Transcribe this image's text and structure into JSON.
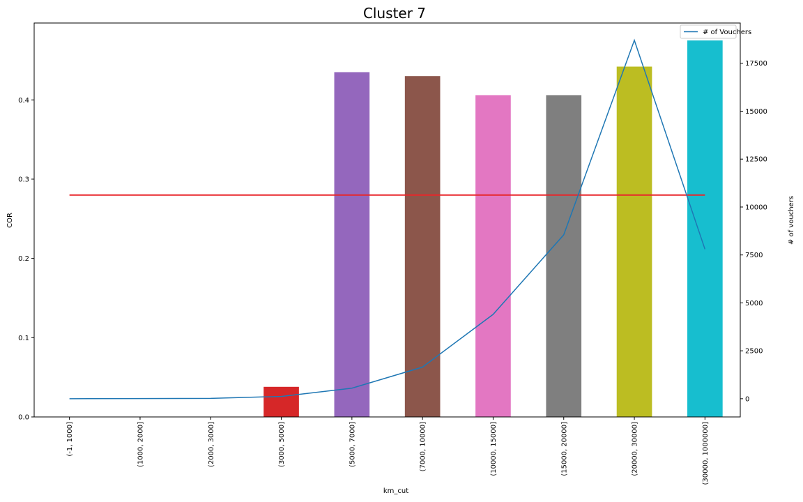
{
  "chart_data": {
    "type": "bar",
    "title": "Cluster 7",
    "xlabel": "km_cut",
    "ylabel": "COR",
    "ylabel_right": "# of vouchers",
    "categories": [
      "(-1, 1000]",
      "(1000, 2000]",
      "(2000, 3000]",
      "(3000, 5000]",
      "(5000, 7000]",
      "(7000, 10000]",
      "(10000, 15000]",
      "(15000, 20000]",
      "(20000, 30000]",
      "(30000, 1000000]"
    ],
    "bar_values": [
      0,
      0,
      0,
      0.038,
      0.435,
      0.43,
      0.406,
      0.406,
      0.442,
      0.475
    ],
    "bar_colors": [
      "#1f77b4",
      "#ff7f0e",
      "#2ca02c",
      "#d62728",
      "#9467bd",
      "#8c564b",
      "#e377c2",
      "#7f7f7f",
      "#bcbd22",
      "#17becf"
    ],
    "reference_line": {
      "value": 0.28,
      "color": "#e8262a"
    },
    "line_series": {
      "name": "# of Vouchers",
      "color": "#1f77b4",
      "values": [
        0,
        10,
        20,
        120,
        550,
        1650,
        4400,
        8550,
        18700,
        7800
      ]
    },
    "ylim": [
      0,
      0.497
    ],
    "yticks": [
      "0.0",
      "0.1",
      "0.2",
      "0.3",
      "0.4"
    ],
    "ylim_right": [
      -950,
      19600
    ],
    "yticks_right": [
      "0",
      "2500",
      "5000",
      "7500",
      "10000",
      "12500",
      "15000",
      "17500"
    ],
    "legend_position": "upper right",
    "grid": false
  }
}
